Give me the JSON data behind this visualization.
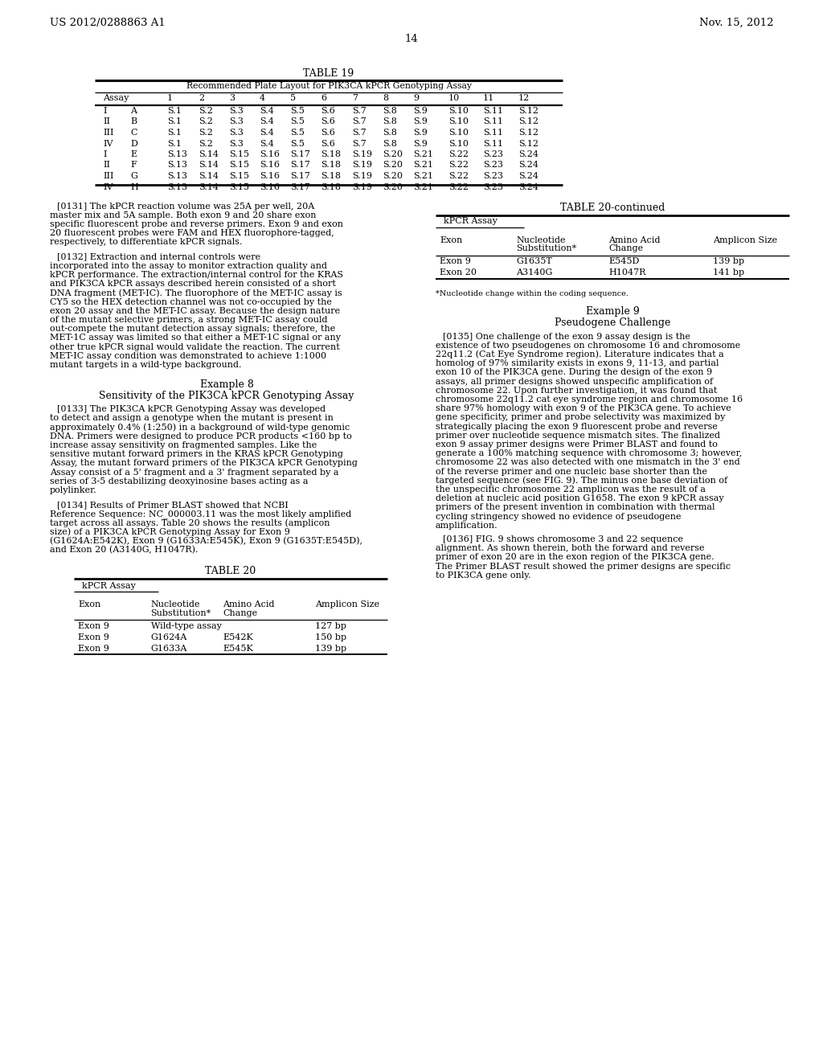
{
  "header_left": "US 2012/0288863 A1",
  "header_right": "Nov. 15, 2012",
  "page_number": "14",
  "background_color": "#ffffff",
  "table19_title": "TABLE 19",
  "table19_subtitle": "Recommended Plate Layout for PIK3CA kPCR Genotyping Assay",
  "table19_col_headers": [
    "Assay",
    "",
    "1",
    "2",
    "3",
    "4",
    "5",
    "6",
    "7",
    "8",
    "9",
    "10",
    "11",
    "12"
  ],
  "table19_rows": [
    [
      "I",
      "A",
      "S.1",
      "S.2",
      "S.3",
      "S.4",
      "S.5",
      "S.6",
      "S.7",
      "S.8",
      "S.9",
      "S.10",
      "S.11",
      "S.12"
    ],
    [
      "II",
      "B",
      "S.1",
      "S.2",
      "S.3",
      "S.4",
      "S.5",
      "S.6",
      "S.7",
      "S.8",
      "S.9",
      "S.10",
      "S.11",
      "S.12"
    ],
    [
      "III",
      "C",
      "S.1",
      "S.2",
      "S.3",
      "S.4",
      "S.5",
      "S.6",
      "S.7",
      "S.8",
      "S.9",
      "S.10",
      "S.11",
      "S.12"
    ],
    [
      "IV",
      "D",
      "S.1",
      "S.2",
      "S.3",
      "S.4",
      "S.5",
      "S.6",
      "S.7",
      "S.8",
      "S.9",
      "S.10",
      "S.11",
      "S.12"
    ],
    [
      "I",
      "E",
      "S.13",
      "S.14",
      "S.15",
      "S.16",
      "S.17",
      "S.18",
      "S.19",
      "S.20",
      "S.21",
      "S.22",
      "S.23",
      "S.24"
    ],
    [
      "II",
      "F",
      "S.13",
      "S.14",
      "S.15",
      "S.16",
      "S.17",
      "S.18",
      "S.19",
      "S.20",
      "S.21",
      "S.22",
      "S.23",
      "S.24"
    ],
    [
      "III",
      "G",
      "S.13",
      "S.14",
      "S.15",
      "S.16",
      "S.17",
      "S.18",
      "S.19",
      "S.20",
      "S.21",
      "S.22",
      "S.23",
      "S.24"
    ],
    [
      "IV",
      "H",
      "S.13",
      "S.14",
      "S.15",
      "S.16",
      "S.17",
      "S.18",
      "S.19",
      "S.20",
      "S.21",
      "S.22",
      "S.23",
      "S.24"
    ]
  ],
  "para0131": "[0131]   The kPCR reaction volume was 25A per well, 20A master mix and 5A sample. Both exon 9 and 20 share exon specific fluorescent probe and reverse primers. Exon 9 and exon 20 fluorescent probes were FAM and HEX fluorophore-tagged, respectively, to differentiate kPCR signals.",
  "para0132": "[0132]   Extraction and internal controls were incorporated into the assay to monitor extraction quality and kPCR performance. The extraction/internal control for the KRAS and PIK3CA kPCR assays described herein consisted of a short DNA fragment (MET-IC). The fluorophore of the MET-IC assay is CY5 so the HEX detection channel was not co-occupied by the exon 20 assay and the MET-IC assay. Because the design nature of the mutant selective primers, a strong MET-IC assay could out-compete the mutant detection assay signals; therefore, the MET-1C assay was limited so that either a MET-1C signal or any other true kPCR signal would validate the reaction. The current MET-IC assay condition was demonstrated to achieve 1:1000 mutant targets in a wild-type background.",
  "example8": "Example 8",
  "example8_sub": "Sensitivity of the PIK3CA kPCR Genotyping Assay",
  "para0133": "[0133]   The PIK3CA kPCR Genotyping Assay was developed to detect and assign a genotype when the mutant is present in approximately 0.4% (1:250) in a background of wild-type genomic DNA. Primers were designed to produce PCR products <160 bp to increase assay sensitivity on fragmented samples. Like the sensitive mutant forward primers in the KRAS kPCR Genotyping Assay, the mutant forward primers of the PIK3CA kPCR Genotyping Assay consist of a 5' fragment and a 3' fragment separated by a series of 3-5 destabilizing deoxyinosine bases acting as a polylinker.",
  "para0134": "[0134]   Results of Primer BLAST showed that NCBI Reference Sequence: NC_000003.11 was the most likely amplified target across all assays. Table 20 shows the results (amplicon size) of a PIK3CA kPCR Genotyping Assay for Exon 9 (G1624A:E542K), Exon 9 (G1633A:E545K), Exon 9 (G1635T:E545D), and Exon 20 (A3140G, H1047R).",
  "table20cont_title": "TABLE 20-continued",
  "table20cont_subtitle": "kPCR Assay",
  "table20cont_hdr1": "Exon",
  "table20cont_hdr2": "Nucleotide",
  "table20cont_hdr2b": "Substitution*",
  "table20cont_hdr3": "Amino Acid",
  "table20cont_hdr3b": "Change",
  "table20cont_hdr4": "Amplicon Size",
  "table20cont_rows": [
    [
      "Exon 9",
      "G1635T",
      "E545D",
      "139 bp"
    ],
    [
      "Exon 20",
      "A3140G",
      "H1047R",
      "141 bp"
    ]
  ],
  "table20cont_footnote": "*Nucleotide change within the coding sequence.",
  "example9": "Example 9",
  "example9_sub": "Pseudogene Challenge",
  "para0135": "[0135]   One challenge of the exon 9 assay design is the existence of two pseudogenes on chromosome 16 and chromosome 22q11.2 (Cat Eye Syndrome region). Literature indicates that a homolog of 97% similarity exists in exons 9, 11-13, and partial exon 10 of the PIK3CA gene. During the design of the exon 9 assays, all primer designs showed unspecific amplification of chromosome 22. Upon further investigation, it was found that chromosome 22q11.2 cat eye syndrome region and chromosome 16 share 97% homology with exon 9 of the PIK3CA gene. To achieve gene specificity, primer and probe selectivity was maximized by strategically placing the exon 9 fluorescent probe and reverse primer over nucleotide sequence mismatch sites. The finalized exon 9 assay primer designs were Primer BLAST and found to generate a 100% matching sequence with chromosome 3; however, chromosome 22 was also detected with one mismatch in the 3' end of the reverse primer and one nucleic base shorter than the targeted sequence (see FIG. 9). The minus one base deviation of the unspecific chromosome 22 amplicon was the result of a deletion at nucleic acid position G1658. The exon 9 kPCR assay primers of the present invention in combination with thermal cycling stringency showed no evidence of pseudogene amplification.",
  "para0136": "[0136]   FIG. 9 shows chromosome 3 and 22 sequence alignment. As shown therein, both the forward and reverse primer of exon 20 are in the exon region of the PIK3CA gene. The Primer BLAST result showed the primer designs are specific to PIK3CA gene only.",
  "table20_title": "TABLE 20",
  "table20_subtitle": "kPCR Assay",
  "table20_hdr1": "Exon",
  "table20_hdr2": "Nucleotide",
  "table20_hdr2b": "Substitution*",
  "table20_hdr3": "Amino Acid",
  "table20_hdr3b": "Change",
  "table20_hdr4": "Amplicon Size",
  "table20_rows": [
    [
      "Exon 9",
      "Wild-type assay",
      "",
      "127 bp"
    ],
    [
      "Exon 9",
      "G1624A",
      "E542K",
      "150 bp"
    ],
    [
      "Exon 9",
      "G1633A",
      "E545K",
      "139 bp"
    ]
  ]
}
